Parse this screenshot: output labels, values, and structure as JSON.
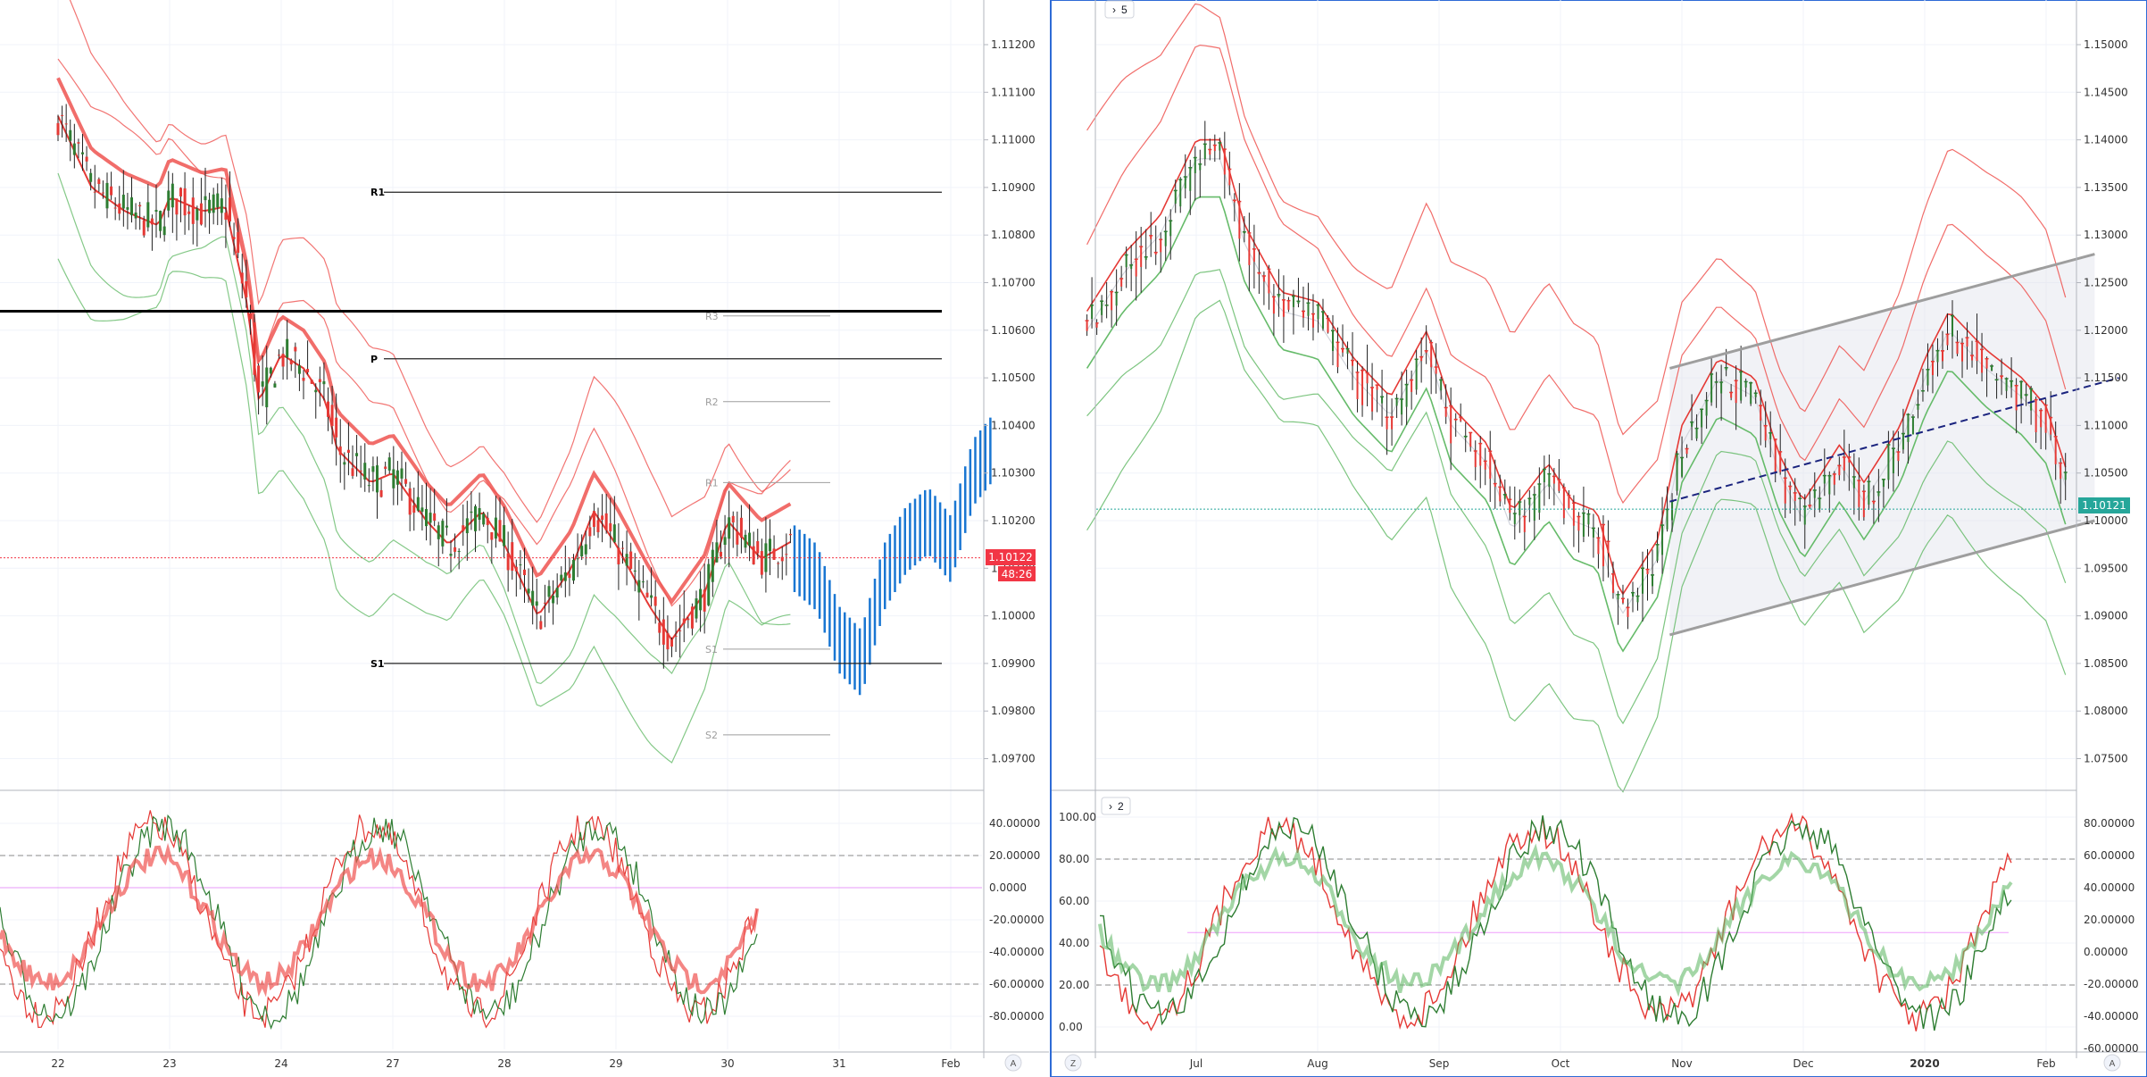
{
  "left_panel": {
    "price_axis_ticks": [
      "1.11200",
      "1.11100",
      "1.11000",
      "1.10900",
      "1.10800",
      "1.10700",
      "1.10600",
      "1.10500",
      "1.10400",
      "1.10300",
      "1.10200",
      "1.10100",
      "1.10000",
      "1.09900",
      "1.09800",
      "1.09700"
    ],
    "price_marker": "1.10122",
    "countdown": "48:26",
    "time_axis": [
      "22",
      "23",
      "24",
      "27",
      "28",
      "29",
      "30",
      "31",
      "Feb"
    ],
    "pivot_labels": {
      "R1": "R1",
      "P": "P",
      "S1": "S1",
      "R3": "R3",
      "R2": "R2",
      "R1_small": "R1",
      "S1_small": "S1",
      "S2": "S2"
    },
    "osc_axis_ticks": [
      "40.00000",
      "20.00000",
      "0.0000",
      "-20.00000",
      "-40.00000",
      "-60.00000",
      "-80.00000"
    ],
    "corner_label": "A"
  },
  "right_panel": {
    "collapse_label": "5",
    "price_axis_ticks": [
      "1.15000",
      "1.14500",
      "1.14000",
      "1.13500",
      "1.13000",
      "1.12500",
      "1.12000",
      "1.11500",
      "1.11000",
      "1.10500",
      "1.10000",
      "1.09500",
      "1.09000",
      "1.08500",
      "1.08000",
      "1.07500"
    ],
    "price_marker": "1.10121",
    "time_axis": [
      "Jul",
      "Aug",
      "Sep",
      "Oct",
      "Nov",
      "Dec",
      "2020",
      "Feb"
    ],
    "osc_collapse_label": "2",
    "osc_left_ticks": [
      "100.00",
      "80.00",
      "60.00",
      "40.00",
      "20.00",
      "0.00"
    ],
    "osc_right_ticks": [
      "80.00000",
      "60.00000",
      "40.00000",
      "20.00000",
      "0.00000",
      "-20.00000",
      "-40.00000",
      "-60.00000"
    ],
    "corner_left": "Z",
    "corner_right": "A"
  },
  "colors": {
    "bull": "#2e7d32",
    "bear": "#e53935",
    "blue": "#1976d2",
    "band_red": "#ef5350",
    "band_green": "#66bb6a",
    "marker_red": "#f23645",
    "marker_teal": "#26a69a",
    "channel": "#9e9e9e",
    "midline": "#1a237e"
  },
  "chart_data": [
    {
      "type": "candlestick",
      "timeframe": "intraday",
      "x": [
        "22",
        "23",
        "24",
        "27",
        "28",
        "29",
        "30",
        "31",
        "Feb"
      ],
      "ylim": [
        1.0965,
        1.1135
      ],
      "pivots": {
        "R1": 1.1089,
        "P": 1.1054,
        "S1": 1.099
      },
      "horizontal_line": 1.1064,
      "last_price": 1.10122,
      "close_path": [
        [
          0,
          1.1105
        ],
        [
          0.3,
          1.109
        ],
        [
          0.6,
          1.1085
        ],
        [
          0.9,
          1.1082
        ],
        [
          1.0,
          1.1088
        ],
        [
          1.3,
          1.1085
        ],
        [
          1.5,
          1.1086
        ],
        [
          1.7,
          1.1065
        ],
        [
          1.8,
          1.1045
        ],
        [
          2.0,
          1.1055
        ],
        [
          2.2,
          1.1052
        ],
        [
          2.4,
          1.1045
        ],
        [
          2.5,
          1.1035
        ],
        [
          2.8,
          1.1028
        ],
        [
          3.0,
          1.103
        ],
        [
          3.3,
          1.102
        ],
        [
          3.5,
          1.1015
        ],
        [
          3.8,
          1.1022
        ],
        [
          4.0,
          1.1015
        ],
        [
          4.3,
          1.1
        ],
        [
          4.6,
          1.101
        ],
        [
          4.8,
          1.1022
        ],
        [
          5.0,
          1.1015
        ],
        [
          5.3,
          1.1002
        ],
        [
          5.5,
          1.0995
        ],
        [
          5.8,
          1.1005
        ],
        [
          6.0,
          1.102
        ],
        [
          6.3,
          1.1012
        ],
        [
          6.6,
          1.1016
        ]
      ],
      "projection": [
        [
          6.6,
          1.1012
        ],
        [
          6.8,
          1.1008
        ],
        [
          7.0,
          1.0995
        ],
        [
          7.2,
          1.099
        ],
        [
          7.4,
          1.1008
        ],
        [
          7.6,
          1.1016
        ],
        [
          7.8,
          1.102
        ],
        [
          8.0,
          1.1014
        ],
        [
          8.2,
          1.103
        ],
        [
          8.4,
          1.1036
        ]
      ],
      "oscillator": {
        "ylim": [
          -90,
          50
        ],
        "levels": [
          20,
          -60,
          0
        ]
      }
    },
    {
      "type": "candlestick",
      "timeframe": "daily",
      "x": [
        "Jul",
        "Aug",
        "Sep",
        "Oct",
        "Nov",
        "Dec",
        "2020",
        "Feb"
      ],
      "ylim": [
        1.0735,
        1.152
      ],
      "last_price": 1.10121,
      "close_path": [
        [
          -0.9,
          1.12
        ],
        [
          -0.6,
          1.126
        ],
        [
          -0.3,
          1.13
        ],
        [
          0,
          1.138
        ],
        [
          0.2,
          1.138
        ],
        [
          0.4,
          1.129
        ],
        [
          0.7,
          1.122
        ],
        [
          1.0,
          1.121
        ],
        [
          1.3,
          1.115
        ],
        [
          1.6,
          1.111
        ],
        [
          1.9,
          1.118
        ],
        [
          2.1,
          1.11
        ],
        [
          2.4,
          1.106
        ],
        [
          2.6,
          1.099
        ],
        [
          2.9,
          1.104
        ],
        [
          3.1,
          1.1
        ],
        [
          3.3,
          1.099
        ],
        [
          3.5,
          1.09
        ],
        [
          3.8,
          1.096
        ],
        [
          4.0,
          1.108
        ],
        [
          4.3,
          1.115
        ],
        [
          4.6,
          1.113
        ],
        [
          4.8,
          1.105
        ],
        [
          5.0,
          1.1
        ],
        [
          5.3,
          1.106
        ],
        [
          5.5,
          1.102
        ],
        [
          5.8,
          1.108
        ],
        [
          6.0,
          1.115
        ],
        [
          6.2,
          1.12
        ],
        [
          6.5,
          1.116
        ],
        [
          6.8,
          1.113
        ],
        [
          7.0,
          1.11
        ],
        [
          7.2,
          1.102
        ]
      ],
      "channel": {
        "upper": [
          [
            3.9,
            1.116
          ],
          [
            7.4,
            1.128
          ]
        ],
        "lower": [
          [
            3.9,
            1.088
          ],
          [
            7.4,
            1.1
          ]
        ],
        "mid": [
          [
            3.9,
            1.102
          ],
          [
            7.6,
            1.115
          ]
        ]
      },
      "oscillator": {
        "ylim": [
          -5,
          105
        ],
        "levels": [
          80,
          20,
          50
        ]
      }
    }
  ]
}
